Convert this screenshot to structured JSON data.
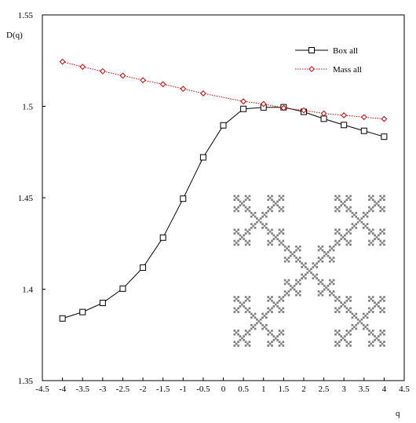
{
  "chart_data": {
    "type": "line",
    "title": "",
    "xlabel": "q",
    "ylabel": "D(q)",
    "xlim": [
      -4.5,
      4.5
    ],
    "ylim": [
      1.35,
      1.55
    ],
    "xticks": [
      -4.5,
      -4,
      -3.5,
      -3,
      -2.5,
      -2,
      -1.5,
      -1,
      -0.5,
      0,
      0.5,
      1,
      1.5,
      2,
      2.5,
      3,
      3.5,
      4,
      4.5
    ],
    "xtick_labels": [
      "-4.5",
      "-4",
      "-3.5",
      "-3",
      "-2.5",
      "-2",
      "-1.5",
      "-1",
      "-0.5",
      "0",
      "0.5",
      "1",
      "1.5",
      "2",
      "2.5",
      "3",
      "3.5",
      "4",
      "4.5"
    ],
    "yticks": [
      1.35,
      1.4,
      1.45,
      1.5,
      1.55
    ],
    "ytick_labels": [
      "1.35",
      "1.4",
      "1.45",
      "1.5",
      "1.55"
    ],
    "grid": false,
    "legend_position": "top-right",
    "series": [
      {
        "name": "Box all",
        "color": "#000000",
        "line_style": "solid",
        "marker": "square",
        "x": [
          -4,
          -3.5,
          -3,
          -2.5,
          -2,
          -1.5,
          -1,
          -0.5,
          0,
          0.5,
          1,
          1.5,
          2,
          2.5,
          3,
          3.5,
          4
        ],
        "y": [
          1.384,
          1.3875,
          1.3925,
          1.4003,
          1.4118,
          1.4282,
          1.4495,
          1.4721,
          1.4896,
          1.4986,
          1.4994,
          1.4995,
          1.497,
          1.4932,
          1.4898,
          1.4866,
          1.4834
        ]
      },
      {
        "name": "Mass all",
        "color": "#cc0000",
        "line_style": "dotted",
        "marker": "diamond",
        "x": [
          -4,
          -3.5,
          -3,
          -2.5,
          -2,
          -1.5,
          -1,
          -0.5,
          0.5,
          1,
          1.5,
          2,
          2.5,
          3,
          3.5,
          4
        ],
        "y": [
          1.5244,
          1.5216,
          1.5192,
          1.5168,
          1.5143,
          1.5121,
          1.5096,
          1.5071,
          1.5027,
          1.5013,
          1.4991,
          1.4978,
          1.4961,
          1.4951,
          1.4941,
          1.4931
        ]
      }
    ],
    "inset": {
      "kind": "fractal",
      "description_icon": "vicsek-x-fractal-icon",
      "color": "#808080"
    }
  }
}
